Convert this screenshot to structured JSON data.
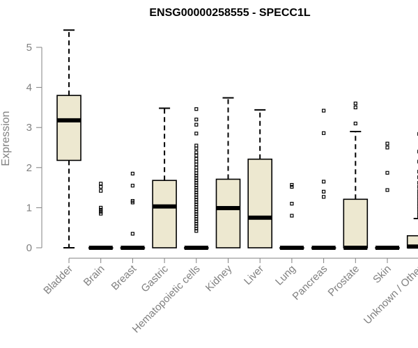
{
  "chart_data": {
    "type": "boxplot",
    "title": "ENSG00000258555 - SPECC1L",
    "ylabel": "Expression",
    "xlabel": "",
    "ylim": [
      0,
      5.6
    ],
    "yticks": [
      0,
      1,
      2,
      3,
      4,
      5
    ],
    "grid": false,
    "legend": "none",
    "box_color": "#ede8d0",
    "categories": [
      "Bladder",
      "Brain",
      "Breast",
      "Gastric",
      "Hematopoietic cells",
      "Kidney",
      "Liver",
      "Lung",
      "Pancreas",
      "Prostate",
      "Skin",
      "Unknown / Other"
    ],
    "boxes": [
      {
        "category": "Bladder",
        "min": 0,
        "q1": 2.18,
        "median": 3.18,
        "q3": 3.8,
        "max": 5.43,
        "outliers": []
      },
      {
        "category": "Brain",
        "min": 0,
        "q1": 0,
        "median": 0,
        "q3": 0,
        "max": 0,
        "outliers": [
          1.6,
          1.52,
          1.42,
          1.0,
          0.95,
          0.9,
          0.85
        ]
      },
      {
        "category": "Breast",
        "min": 0,
        "q1": 0,
        "median": 0,
        "q3": 0,
        "max": 0,
        "outliers": [
          1.85,
          1.55,
          1.17,
          1.13,
          0.35
        ]
      },
      {
        "category": "Gastric",
        "min": 0,
        "q1": 0,
        "median": 1.03,
        "q3": 1.68,
        "max": 3.48,
        "outliers": []
      },
      {
        "category": "Hematopoietic cells",
        "min": 0,
        "q1": 0,
        "median": 0,
        "q3": 0,
        "max": 0,
        "outliers": [
          3.46,
          3.2,
          3.07,
          2.85,
          2.55,
          2.48,
          2.38,
          2.3,
          2.22,
          2.15,
          2.08,
          2.0,
          1.93,
          1.86,
          1.8,
          1.74,
          1.68,
          1.62,
          1.56,
          1.5,
          1.44,
          1.38,
          1.32,
          1.26,
          1.2,
          1.14,
          1.08,
          1.02,
          0.96,
          0.9,
          0.84,
          0.78,
          0.72,
          0.66,
          0.6,
          0.54,
          0.48,
          0.42
        ]
      },
      {
        "category": "Kidney",
        "min": 0,
        "q1": 0,
        "median": 0.99,
        "q3": 1.71,
        "max": 3.74,
        "outliers": []
      },
      {
        "category": "Liver",
        "min": 0,
        "q1": 0,
        "median": 0.75,
        "q3": 2.21,
        "max": 3.44,
        "outliers": []
      },
      {
        "category": "Lung",
        "min": 0,
        "q1": 0,
        "median": 0,
        "q3": 0,
        "max": 0,
        "outliers": [
          1.57,
          1.52,
          1.1,
          0.8
        ]
      },
      {
        "category": "Pancreas",
        "min": 0,
        "q1": 0,
        "median": 0,
        "q3": 0,
        "max": 0,
        "outliers": [
          3.42,
          2.86,
          1.65,
          1.4,
          1.27
        ]
      },
      {
        "category": "Prostate",
        "min": 0,
        "q1": 0,
        "median": 0,
        "q3": 1.21,
        "max": 2.9,
        "outliers": [
          3.6,
          3.5,
          3.1
        ]
      },
      {
        "category": "Skin",
        "min": 0,
        "q1": 0,
        "median": 0,
        "q3": 0,
        "max": 0,
        "outliers": [
          2.6,
          2.5,
          1.87,
          1.44
        ]
      },
      {
        "category": "Unknown / Other",
        "min": 0,
        "q1": 0,
        "median": 0.03,
        "q3": 0.3,
        "max": 0.73,
        "outliers": [
          2.84,
          2.4,
          2.15,
          1.9,
          1.76,
          1.62,
          1.52,
          1.42,
          1.34,
          1.26,
          1.18,
          1.1,
          1.03,
          0.96,
          0.89,
          0.82,
          0.76
        ]
      }
    ]
  }
}
